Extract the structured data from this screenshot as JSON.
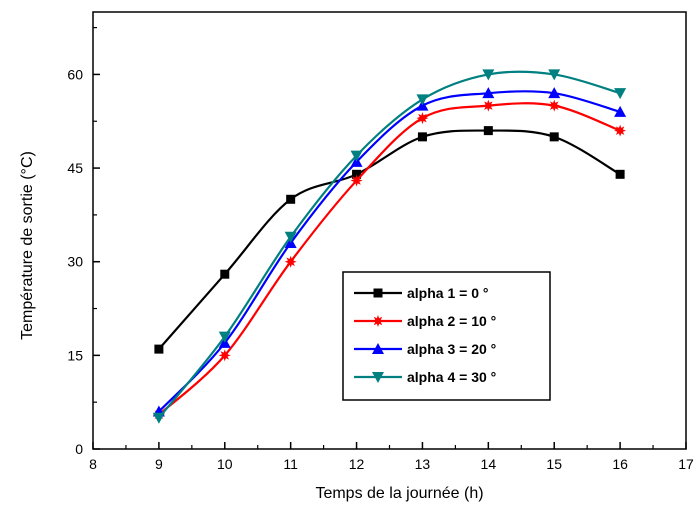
{
  "chart_data": {
    "type": "line",
    "xlabel": "Temps de la journée (h)",
    "ylabel": "Température de sortie (°C)",
    "xlim": [
      8,
      17
    ],
    "ylim": [
      0,
      70
    ],
    "xticks": [
      8,
      9,
      10,
      11,
      12,
      13,
      14,
      15,
      16,
      17
    ],
    "yticks": [
      0,
      15,
      30,
      45,
      60
    ],
    "grid": false,
    "legend_position": "center-right",
    "x": [
      9,
      10,
      11,
      12,
      13,
      14,
      15,
      16
    ],
    "series": [
      {
        "name": "alpha 1 = 0 °",
        "color": "#000000",
        "marker": "square",
        "values": [
          16,
          28,
          40,
          44,
          50,
          51,
          50,
          44
        ]
      },
      {
        "name": "alpha 2 = 10 °",
        "color": "#ff0000",
        "marker": "star",
        "values": [
          5.5,
          15,
          30,
          43,
          53,
          55,
          55,
          51
        ]
      },
      {
        "name": "alpha 3 = 20 °",
        "color": "#0000ff",
        "marker": "triangle-up",
        "values": [
          6,
          17,
          33,
          46,
          55,
          57,
          57,
          54
        ]
      },
      {
        "name": "alpha 4 = 30 °",
        "color": "#008080",
        "marker": "triangle-down",
        "values": [
          5,
          18,
          34,
          47,
          56,
          60,
          60,
          57
        ]
      }
    ]
  }
}
